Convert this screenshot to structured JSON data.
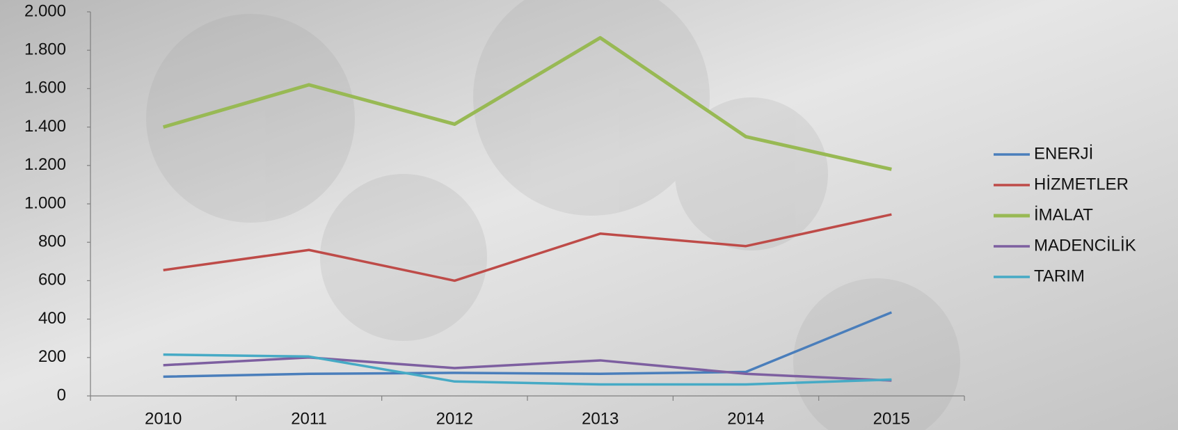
{
  "chart_data": {
    "type": "line",
    "categories": [
      "2010",
      "2011",
      "2012",
      "2013",
      "2014",
      "2015"
    ],
    "series": [
      {
        "name": "ENERJİ",
        "color": "#4a7ebb",
        "values": [
          100,
          115,
          120,
          115,
          125,
          435
        ]
      },
      {
        "name": "HİZMETLER",
        "color": "#be4b48",
        "values": [
          655,
          760,
          600,
          845,
          780,
          945
        ]
      },
      {
        "name": "İMALAT",
        "color": "#98b954",
        "values": [
          1400,
          1620,
          1415,
          1865,
          1350,
          1180
        ]
      },
      {
        "name": "MADENCİLİK",
        "color": "#7d5fa0",
        "values": [
          160,
          200,
          145,
          185,
          115,
          80
        ]
      },
      {
        "name": "TARIM",
        "color": "#46aac5",
        "values": [
          215,
          205,
          75,
          60,
          60,
          85
        ]
      }
    ],
    "ylim": [
      0,
      2000
    ],
    "yticks": [
      0,
      200,
      400,
      600,
      800,
      {
        "value": 1000,
        "label": "1.000"
      },
      {
        "value": 1200,
        "label": "1.200"
      },
      {
        "value": 1400,
        "label": "1.400"
      },
      {
        "value": 1600,
        "label": "1.600"
      },
      {
        "value": 1800,
        "label": "1.800"
      },
      {
        "value": 2000,
        "label": "2.000"
      }
    ],
    "grid": false,
    "legend": "right"
  }
}
